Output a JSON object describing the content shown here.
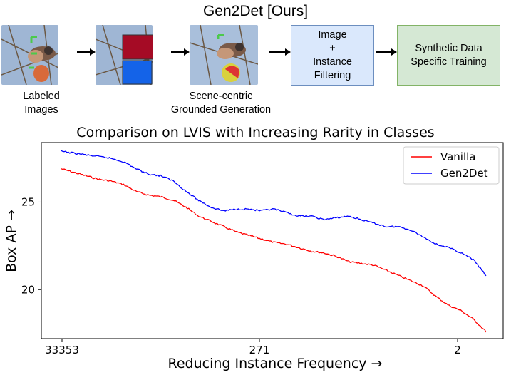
{
  "header": {
    "title": "Gen2Det [Ours]"
  },
  "pipeline": {
    "captions": {
      "labeled": "Labeled\nImages",
      "generation": "Scene-centric\nGrounded Generation"
    },
    "filter_box": "Image\n+\nInstance\nFiltering",
    "training_box": "Synthetic Data\nSpecific Training",
    "colors": {
      "filter_fill": "#dae8fc",
      "filter_border": "#6c8ebf",
      "train_fill": "#d5e8d4",
      "train_border": "#82b366"
    }
  },
  "chart_data": {
    "type": "line",
    "title": "Comparison on LVIS with Increasing Rarity in Classes",
    "xlabel": "Reducing Instance Frequency →",
    "ylabel": "Box AP →",
    "x_tick_labels": [
      "33353",
      "271",
      "2"
    ],
    "y_ticks": [
      20,
      25
    ],
    "ylim": [
      17.2,
      28.4
    ],
    "grid": false,
    "legend_position": "top-right",
    "series": [
      {
        "name": "Vanilla",
        "color": "#ff0000",
        "values": [
          26.9,
          26.7,
          26.5,
          26.3,
          26.2,
          26.0,
          25.6,
          25.4,
          25.3,
          25.1,
          24.7,
          24.2,
          23.9,
          23.6,
          23.3,
          23.1,
          22.9,
          22.7,
          22.6,
          22.4,
          22.2,
          22.1,
          21.9,
          21.6,
          21.5,
          21.4,
          21.1,
          20.8,
          20.5,
          20.2,
          19.6,
          19.1,
          18.8,
          18.3,
          17.6
        ]
      },
      {
        "name": "Gen2Det",
        "color": "#0000ff",
        "values": [
          27.9,
          27.8,
          27.7,
          27.6,
          27.5,
          27.3,
          26.9,
          26.6,
          26.5,
          26.2,
          25.6,
          25.1,
          24.7,
          24.5,
          24.6,
          24.6,
          24.5,
          24.6,
          24.4,
          24.2,
          24.2,
          24.0,
          24.1,
          24.2,
          24.0,
          23.8,
          23.6,
          23.6,
          23.4,
          23.0,
          22.6,
          22.4,
          22.1,
          21.7,
          20.8
        ]
      }
    ]
  }
}
